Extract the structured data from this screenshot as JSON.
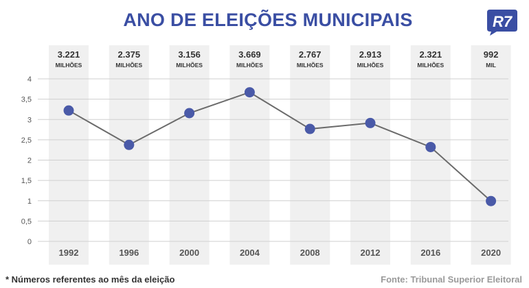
{
  "header": {
    "title": "ANO DE ELEIÇÕES MUNICIPAIS",
    "logo_text": "R7"
  },
  "colors": {
    "title": "#3a4ea3",
    "marker": "#4a5aa8",
    "line": "#6b6b6b",
    "band": "#f0f0f0",
    "logo": "#3a4ea3"
  },
  "chart_data": {
    "type": "line",
    "title": "ANO DE ELEIÇÕES MUNICIPAIS",
    "categories": [
      "1992",
      "1996",
      "2000",
      "2004",
      "2008",
      "2012",
      "2016",
      "2020"
    ],
    "values": [
      3.221,
      2.375,
      3.156,
      3.669,
      2.767,
      2.913,
      2.321,
      0.992
    ],
    "top_labels": [
      {
        "value": "3.221",
        "unit": "MILHÕES"
      },
      {
        "value": "2.375",
        "unit": "MILHÕES"
      },
      {
        "value": "3.156",
        "unit": "MILHÕES"
      },
      {
        "value": "3.669",
        "unit": "MILHÕES"
      },
      {
        "value": "2.767",
        "unit": "MILHÕES"
      },
      {
        "value": "2.913",
        "unit": "MILHÕES"
      },
      {
        "value": "2.321",
        "unit": "MILHÕES"
      },
      {
        "value": "992",
        "unit": "MIL"
      }
    ],
    "ylim": [
      0,
      4
    ],
    "yticks": [
      "0",
      "0,5",
      "1",
      "1,5",
      "2",
      "2,5",
      "3",
      "3,5",
      "4"
    ],
    "ytick_values": [
      0,
      0.5,
      1,
      1.5,
      2,
      2.5,
      3,
      3.5,
      4
    ],
    "grid": true,
    "xlabel": "",
    "ylabel": ""
  },
  "footer": {
    "note": "* Números referentes ao mês da eleição",
    "source": "Fonte: Tribunal Superior Eleitoral"
  }
}
